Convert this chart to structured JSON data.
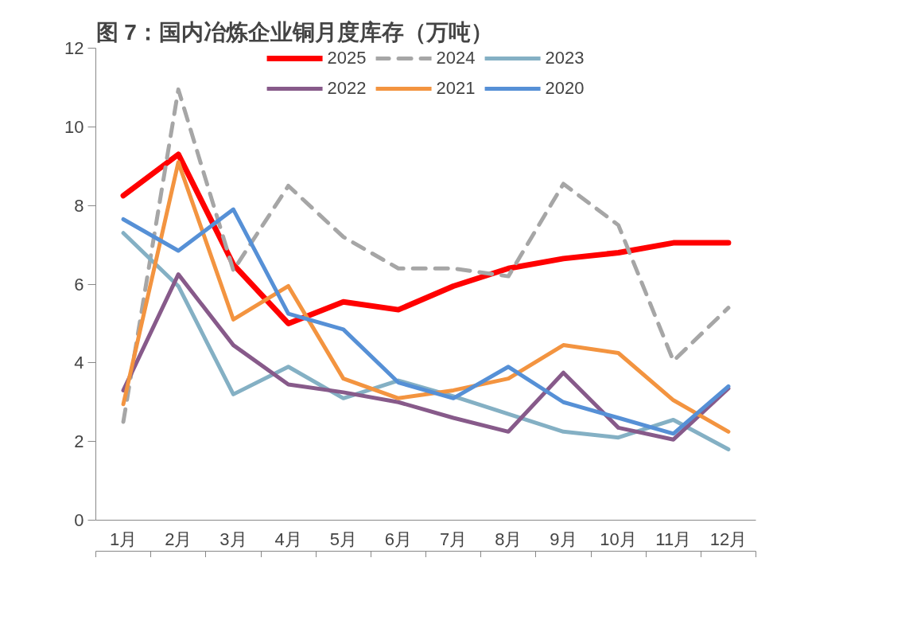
{
  "chart_data": {
    "type": "line",
    "title": "图 7：国内冶炼企业铜月度库存（万吨）",
    "categories": [
      "1月",
      "2月",
      "3月",
      "4月",
      "5月",
      "6月",
      "7月",
      "8月",
      "9月",
      "10月",
      "11月",
      "12月"
    ],
    "ylim": [
      0,
      12
    ],
    "yticks": [
      0,
      2,
      4,
      6,
      8,
      10,
      12
    ],
    "grid": false,
    "legend": "top",
    "series": [
      {
        "name": "2025",
        "color": "#ff0000",
        "line_style": "solid",
        "values": [
          8.25,
          9.3,
          6.5,
          5.0,
          5.55,
          5.35,
          5.95,
          6.4,
          6.65,
          6.8,
          7.05,
          7.05
        ]
      },
      {
        "name": "2024",
        "color": "#a6a6a6",
        "line_style": "dashed",
        "values": [
          2.5,
          10.95,
          6.35,
          8.5,
          7.2,
          6.4,
          6.4,
          6.2,
          8.55,
          7.5,
          4.05,
          5.4
        ]
      },
      {
        "name": "2023",
        "color": "#84b0c4",
        "line_style": "solid",
        "values": [
          7.3,
          5.95,
          3.2,
          3.9,
          3.1,
          3.55,
          3.15,
          2.7,
          2.25,
          2.1,
          2.55,
          1.8
        ]
      },
      {
        "name": "2022",
        "color": "#875a8a",
        "line_style": "solid",
        "values": [
          3.3,
          6.25,
          4.45,
          3.45,
          3.25,
          3.0,
          2.6,
          2.25,
          3.75,
          2.35,
          2.05,
          3.35
        ]
      },
      {
        "name": "2021",
        "color": "#f39440",
        "line_style": "solid",
        "values": [
          2.95,
          9.1,
          5.1,
          5.95,
          3.6,
          3.1,
          3.3,
          3.6,
          4.45,
          4.25,
          3.05,
          2.25
        ]
      },
      {
        "name": "2020",
        "color": "#5690d6",
        "line_style": "solid",
        "values": [
          7.65,
          6.85,
          7.9,
          5.25,
          4.85,
          3.5,
          3.1,
          3.9,
          3.0,
          2.6,
          2.2,
          3.4
        ]
      }
    ]
  }
}
